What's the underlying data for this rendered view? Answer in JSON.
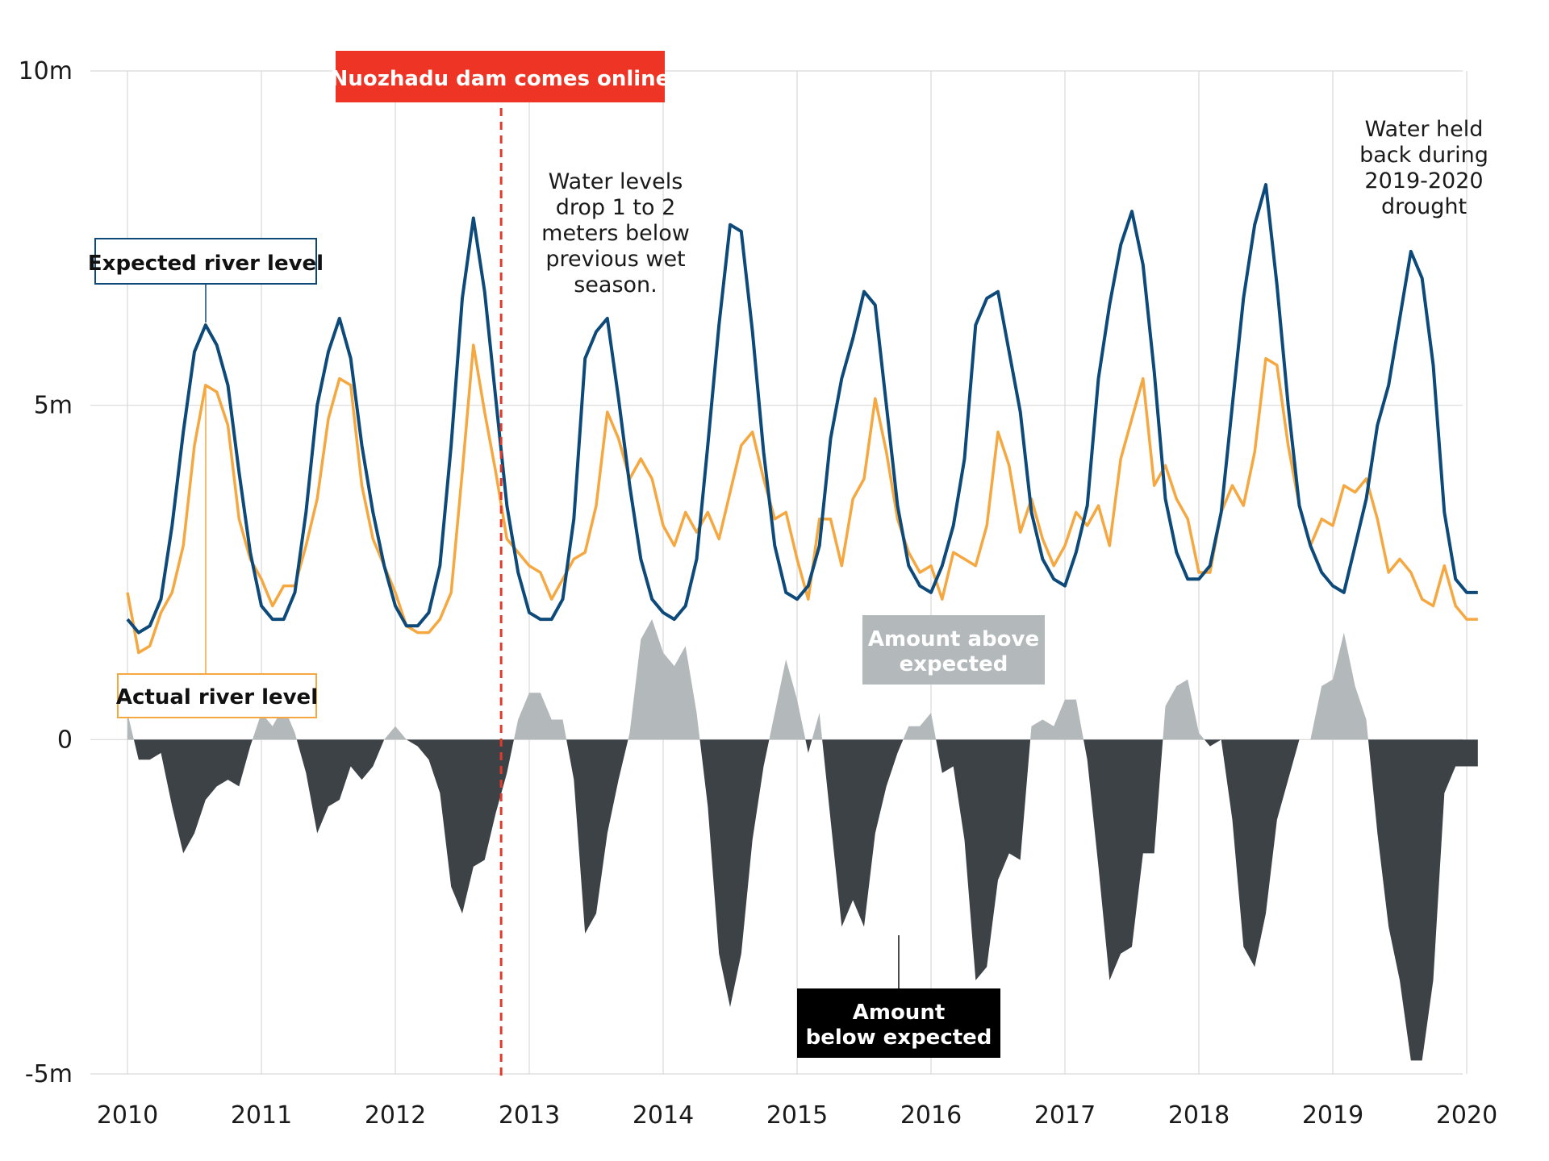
{
  "chart_data": {
    "type": "line",
    "x_start": 2010.0,
    "x_step_months": 1,
    "xlim": [
      2010,
      2020.2
    ],
    "ylim": [
      -5,
      10
    ],
    "y_ticks": [
      {
        "value": -5,
        "label": "-5m"
      },
      {
        "value": 0,
        "label": "0"
      },
      {
        "value": 5,
        "label": "5m"
      },
      {
        "value": 10,
        "label": "10m"
      }
    ],
    "x_ticks": [
      "2010",
      "2011",
      "2012",
      "2013",
      "2014",
      "2015",
      "2016",
      "2017",
      "2018",
      "2019",
      "2020"
    ],
    "grid": true,
    "series": [
      {
        "name": "Expected river level",
        "color": "#0d4a7a",
        "values": [
          1.8,
          1.6,
          1.7,
          2.1,
          3.2,
          4.6,
          5.8,
          6.2,
          5.9,
          5.3,
          4.0,
          2.8,
          2.0,
          1.8,
          1.8,
          2.2,
          3.4,
          5.0,
          5.8,
          6.3,
          5.7,
          4.4,
          3.4,
          2.6,
          2.0,
          1.7,
          1.7,
          1.9,
          2.6,
          4.4,
          6.6,
          7.8,
          6.7,
          5.1,
          3.5,
          2.5,
          1.9,
          1.8,
          1.8,
          2.1,
          3.3,
          5.7,
          6.1,
          6.3,
          5.1,
          3.8,
          2.7,
          2.1,
          1.9,
          1.8,
          2.0,
          2.7,
          4.4,
          6.2,
          7.7,
          7.6,
          6.1,
          4.3,
          2.9,
          2.2,
          2.1,
          2.3,
          2.9,
          4.5,
          5.4,
          6.0,
          6.7,
          6.5,
          5.0,
          3.5,
          2.6,
          2.3,
          2.2,
          2.6,
          3.2,
          4.2,
          6.2,
          6.6,
          6.7,
          5.8,
          4.9,
          3.4,
          2.7,
          2.4,
          2.3,
          2.8,
          3.5,
          5.4,
          6.5,
          7.4,
          7.9,
          7.1,
          5.5,
          3.6,
          2.8,
          2.4,
          2.4,
          2.6,
          3.4,
          5.0,
          6.6,
          7.7,
          8.3,
          6.8,
          5.0,
          3.5,
          2.9,
          2.5,
          2.3,
          2.2,
          2.9,
          3.6,
          4.7,
          5.3,
          6.3,
          7.3,
          6.9,
          5.6,
          3.4,
          2.4,
          2.2,
          2.2
        ]
      },
      {
        "name": "Actual river level",
        "color": "#f5a740",
        "values": [
          2.2,
          1.3,
          1.4,
          1.9,
          2.2,
          2.9,
          4.4,
          5.3,
          5.2,
          4.7,
          3.3,
          2.7,
          2.4,
          2.0,
          2.3,
          2.3,
          2.9,
          3.6,
          4.8,
          5.4,
          5.3,
          3.8,
          3.0,
          2.6,
          2.2,
          1.7,
          1.6,
          1.6,
          1.8,
          2.2,
          4.0,
          5.9,
          4.9,
          4.0,
          3.0,
          2.8,
          2.6,
          2.5,
          2.1,
          2.4,
          2.7,
          2.8,
          3.5,
          4.9,
          4.5,
          3.9,
          4.2,
          3.9,
          3.2,
          2.9,
          3.4,
          3.1,
          3.4,
          3.0,
          3.7,
          4.4,
          4.6,
          3.9,
          3.3,
          3.4,
          2.7,
          2.1,
          3.3,
          3.3,
          2.6,
          3.6,
          3.9,
          5.1,
          4.3,
          3.3,
          2.8,
          2.5,
          2.6,
          2.1,
          2.8,
          2.7,
          2.6,
          3.2,
          4.6,
          4.1,
          3.1,
          3.6,
          3.0,
          2.6,
          2.9,
          3.4,
          3.2,
          3.5,
          2.9,
          4.2,
          4.8,
          5.4,
          3.8,
          4.1,
          3.6,
          3.3,
          2.5,
          2.5,
          3.4,
          3.8,
          3.5,
          4.3,
          5.7,
          5.6,
          4.4,
          3.5,
          2.9,
          3.3,
          3.2,
          3.8,
          3.7,
          3.9,
          3.3,
          2.5,
          2.7,
          2.5,
          2.1,
          2.0,
          2.6,
          2.0,
          1.8,
          1.8
        ]
      }
    ],
    "annotations": {
      "dam_label": "Nuozhadu dam comes online",
      "dam_x": 2012.79,
      "expected_label": "Expected river level",
      "actual_label": "Actual river level",
      "above_label": [
        "Amount above",
        "expected"
      ],
      "below_label": [
        "Amount",
        "below expected"
      ],
      "water_drop": [
        "Water levels",
        "drop 1 to 2",
        "meters below",
        "previous wet",
        "season."
      ],
      "water_held": [
        "Water held",
        "back during",
        "2019-2020",
        "drought"
      ]
    },
    "colors": {
      "above_fill": "#b3b8ba",
      "below_fill": "#3d4246",
      "dam_line": "#e03a2a",
      "dam_box": "#ee3424",
      "grid": "#d9d9d9"
    }
  }
}
